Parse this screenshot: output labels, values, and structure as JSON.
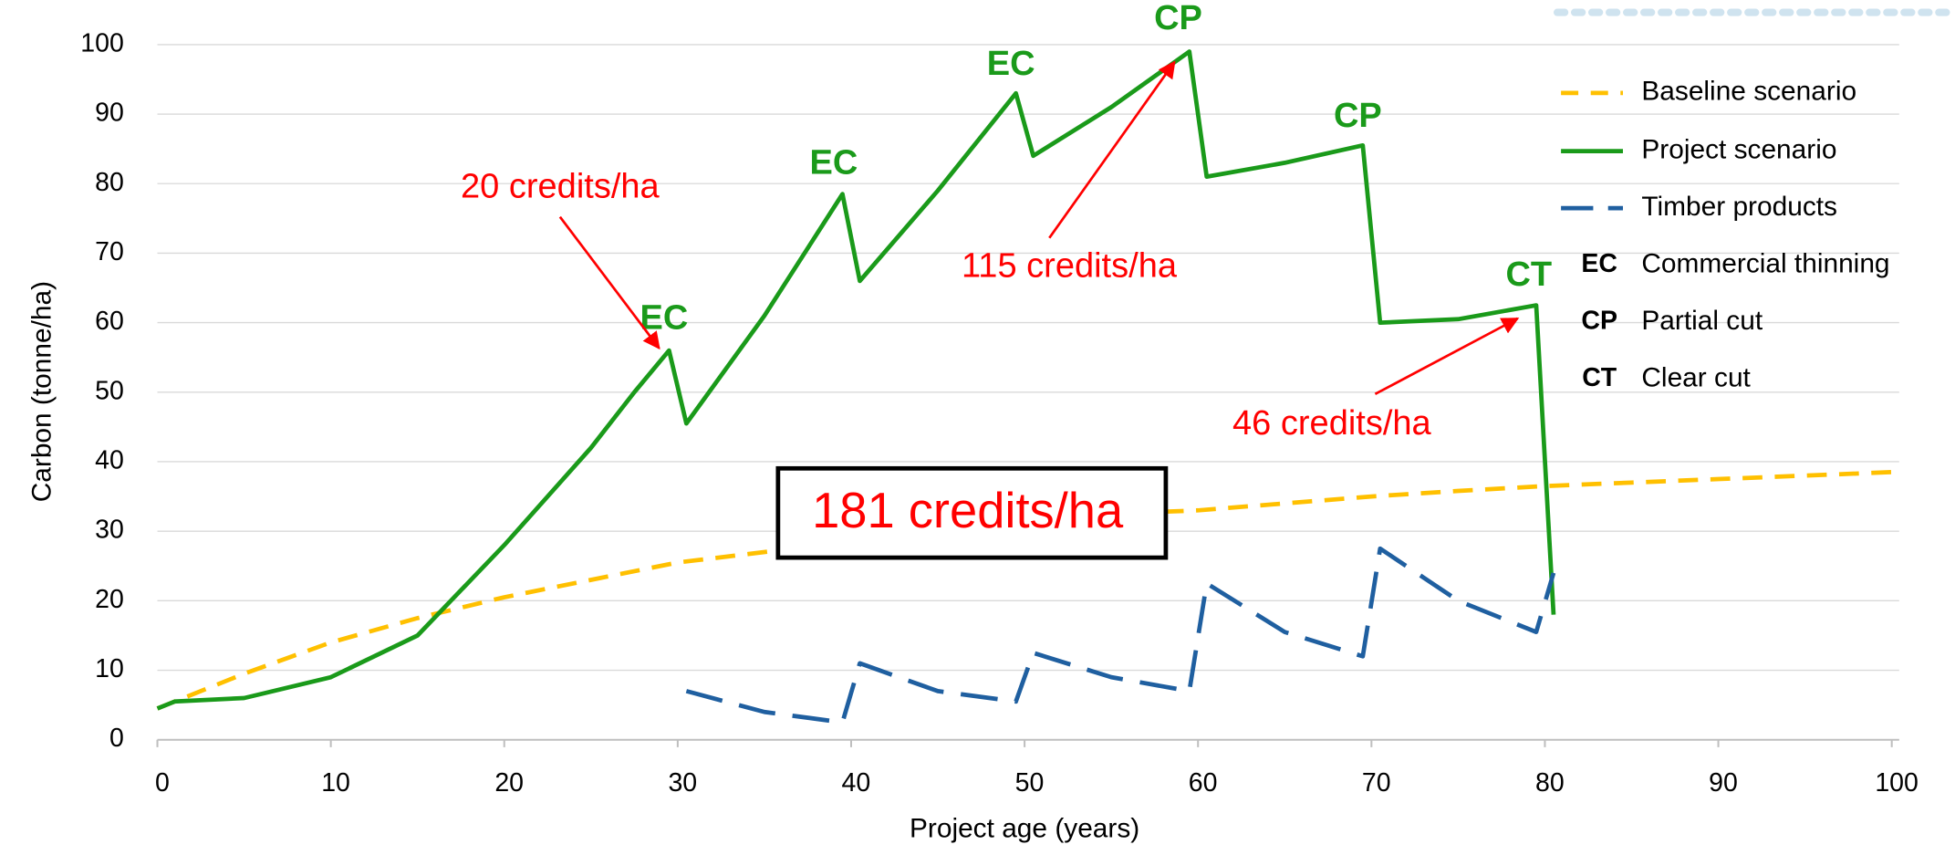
{
  "chart_data": {
    "type": "line",
    "xlabel": "Project age (years)",
    "ylabel": "Carbon (tonne/ha)",
    "xlim": [
      0,
      100
    ],
    "xticks": [
      0,
      10,
      20,
      30,
      40,
      50,
      60,
      70,
      80,
      90,
      100
    ],
    "ylim": [
      0,
      100
    ],
    "yticks": [
      0,
      10,
      20,
      30,
      40,
      50,
      60,
      70,
      80,
      90,
      100
    ],
    "grid": true,
    "legend": "upper right",
    "series": [
      {
        "name": "Baseline scenario",
        "color": "#ffc000",
        "style": "dashed",
        "x": [
          0,
          5,
          10,
          15,
          20,
          25,
          30,
          35,
          40,
          45,
          50,
          55,
          60,
          65,
          70,
          75,
          80,
          85,
          90,
          95,
          100
        ],
        "values": [
          4.5,
          9.5,
          14,
          17.5,
          20.5,
          23,
          25.5,
          27,
          28.5,
          30,
          31.5,
          32.5,
          33,
          34,
          35,
          35.8,
          36.5,
          37,
          37.5,
          38,
          38.5
        ]
      },
      {
        "name": "Project scenario",
        "color": "#1a9a1a",
        "style": "solid",
        "x": [
          0,
          1,
          5,
          10,
          15,
          20,
          25,
          27.5,
          29.5,
          30.5,
          35,
          39.5,
          40.5,
          45,
          49.5,
          50.5,
          55,
          59.5,
          60.5,
          65,
          69.5,
          70.5,
          75,
          79.5,
          80.5
        ],
        "values": [
          4.5,
          5.5,
          6,
          9,
          15,
          28,
          42,
          50,
          56,
          45.5,
          61,
          78.5,
          66,
          79,
          93,
          84,
          91,
          99,
          81,
          83,
          85.5,
          60,
          60.5,
          62.5,
          18
        ]
      },
      {
        "name": "Timber products",
        "color": "#1f5fa0",
        "style": "longdash",
        "x": [
          30.5,
          35,
          39.5,
          40.5,
          45,
          49.5,
          50.5,
          55,
          59.5,
          60.5,
          65,
          69.5,
          70.5,
          75,
          79.5,
          80.5
        ],
        "values": [
          7,
          4,
          2.5,
          11,
          7,
          5.5,
          12.5,
          9,
          7,
          22.5,
          15.5,
          12,
          27.5,
          20,
          15.5,
          24
        ]
      }
    ],
    "legend_codes": [
      {
        "code": "EC",
        "label": "Commercial thinning"
      },
      {
        "code": "CP",
        "label": "Partial cut"
      },
      {
        "code": "CT",
        "label": "Clear cut"
      }
    ],
    "annotations": [
      "EC",
      "EC",
      "EC",
      "CP",
      "CP",
      "CT"
    ],
    "callouts": [
      "20 credits/ha",
      "115 credits/ha",
      "46 credits/ha"
    ],
    "total_label": "181 credits/ha"
  }
}
